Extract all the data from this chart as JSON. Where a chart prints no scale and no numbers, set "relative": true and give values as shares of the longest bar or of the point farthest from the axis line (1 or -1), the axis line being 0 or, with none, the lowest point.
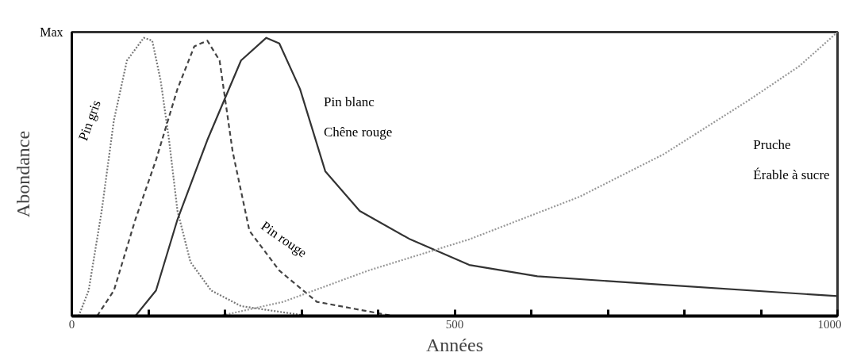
{
  "chart_data": {
    "type": "line",
    "xlabel": "Années",
    "ylabel": "Abondance",
    "relative": true,
    "xlim": [
      0,
      1000
    ],
    "xticks": [
      0,
      {
        "value": 100,
        "label": null
      },
      {
        "value": 200,
        "label": null
      },
      {
        "value": 300,
        "label": null
      },
      {
        "value": 400,
        "label": null
      },
      500,
      {
        "value": 600,
        "label": null
      },
      {
        "value": 700,
        "label": null
      },
      {
        "value": 800,
        "label": null
      },
      {
        "value": 900,
        "label": null
      },
      1000
    ],
    "grid": false,
    "legend": false,
    "marker": "none",
    "annotations": [
      "Max"
    ],
    "series": [
      {
        "name": "Pin gris",
        "color": "#777777",
        "line_style": "dotted",
        "x": [
          9,
          22,
          39,
          55,
          72,
          94,
          105,
          116,
          127,
          138,
          155,
          182,
          221,
          309
        ],
        "values": [
          0,
          0.09,
          0.37,
          0.69,
          0.9,
          0.98,
          0.97,
          0.83,
          0.62,
          0.37,
          0.19,
          0.09,
          0.035,
          0
        ]
      },
      {
        "name": "Pin rouge",
        "color": "#444444",
        "line_style": "dashed",
        "x": [
          33,
          55,
          83,
          110,
          138,
          160,
          177,
          193,
          210,
          232,
          271,
          320,
          420
        ],
        "values": [
          0,
          0.09,
          0.34,
          0.55,
          0.8,
          0.95,
          0.97,
          0.9,
          0.58,
          0.3,
          0.16,
          0.05,
          0
        ]
      },
      {
        "name": "Pin blanc\nChêne rouge",
        "color": "#333333",
        "line_style": "solid",
        "x": [
          83,
          110,
          138,
          177,
          221,
          254,
          271,
          298,
          331,
          376,
          442,
          519,
          608,
          773,
          1000
        ],
        "values": [
          0,
          0.09,
          0.34,
          0.62,
          0.9,
          0.98,
          0.96,
          0.8,
          0.51,
          0.37,
          0.27,
          0.18,
          0.14,
          0.11,
          0.07
        ]
      },
      {
        "name": "Pruche\nÉrable à sucre",
        "color": "#999999",
        "line_style": "dotted",
        "x": [
          193,
          276,
          387,
          519,
          663,
          773,
          884,
          950,
          1000
        ],
        "values": [
          0,
          0.05,
          0.16,
          0.27,
          0.42,
          0.57,
          0.76,
          0.88,
          1.0
        ]
      }
    ]
  }
}
